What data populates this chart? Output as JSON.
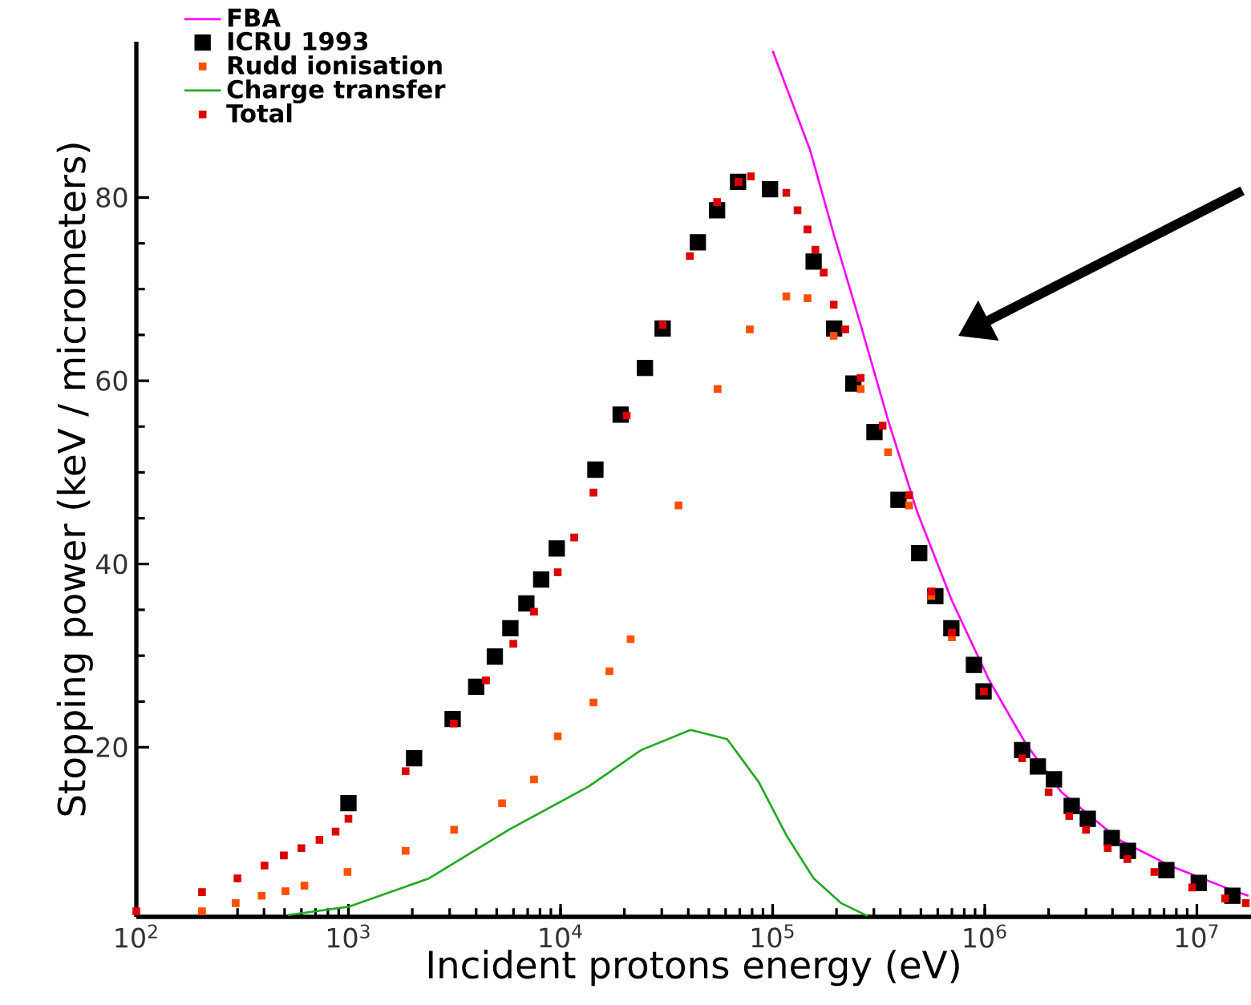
{
  "chart_data": {
    "type": "line",
    "xlabel": "Incident protons energy (eV)",
    "ylabel": "Stopping power (keV / micrometers)",
    "log": "x",
    "xlim": [
      100,
      18000000
    ],
    "ylim": [
      1.5,
      97
    ],
    "xticks": [
      {
        "value": 100,
        "label": "10$^{2}$"
      },
      {
        "value": 1000,
        "label": "10$^{3}$"
      },
      {
        "value": 10000,
        "label": "10$^{4}$"
      },
      {
        "value": 100000,
        "label": "10$^{5}$"
      },
      {
        "value": 1000000,
        "label": "10$^{6}$"
      },
      {
        "value": 10000000,
        "label": "10$^{7}$"
      }
    ],
    "yticks": [
      20,
      40,
      60,
      80
    ],
    "grid": false,
    "legend": "top left",
    "series": [
      {
        "name": "FBA",
        "type": "line",
        "color": "#ff00ff",
        "marker": "none",
        "x": [
          100000,
          150000,
          194000,
          260000,
          350000,
          480000,
          700000,
          1050000,
          1570000,
          2300000,
          4300000,
          7600000,
          13600000,
          17500000
        ],
        "values": [
          96,
          85.2,
          76,
          66.1,
          55.7,
          45.7,
          36,
          27.3,
          20.3,
          15.1,
          9.9,
          7,
          4.7,
          3.8
        ]
      },
      {
        "name": "ICRU 1993",
        "type": "scatter",
        "color": "#000000",
        "marker": "square",
        "x": [
          1000,
          2040,
          3100,
          4000,
          4900,
          5800,
          6900,
          8100,
          9600,
          14600,
          19200,
          25000,
          30300,
          44400,
          54700,
          68700,
          97200,
          156000,
          195000,
          240000,
          302000,
          392000,
          491000,
          585000,
          696000,
          889000,
          987000,
          1500000,
          1780000,
          2120000,
          2570000,
          3060000,
          3970000,
          4730000,
          7180000,
          10200000,
          14700000
        ],
        "values": [
          13.9,
          18.8,
          23.1,
          26.6,
          29.9,
          33,
          35.7,
          38.3,
          41.7,
          50.3,
          56.3,
          61.4,
          65.7,
          75.1,
          78.6,
          81.7,
          80.9,
          73,
          65.7,
          59.7,
          54.4,
          47,
          41.2,
          36.5,
          33,
          29,
          26.1,
          19.7,
          17.9,
          16.5,
          13.6,
          12.2,
          10.1,
          8.7,
          6.6,
          5.2,
          3.8
        ]
      },
      {
        "name": "Rudd ionisation",
        "type": "scatter",
        "color": "#ff5000",
        "marker": "square",
        "x": [
          204,
          294,
          390,
          505,
          620,
          990,
          1860,
          3150,
          5300,
          7500,
          9700,
          14300,
          17000,
          21400,
          36000,
          55000,
          78000,
          116000,
          146000,
          194000,
          260000,
          350000,
          440000,
          560000,
          700000
        ],
        "values": [
          2.1,
          3,
          3.8,
          4.3,
          4.9,
          6.4,
          8.7,
          11,
          13.9,
          16.5,
          21.2,
          24.9,
          28.3,
          31.8,
          46.4,
          59.1,
          65.6,
          69.2,
          69,
          64.9,
          59.1,
          52.2,
          46.4,
          36.5,
          32
        ]
      },
      {
        "name": "Charge transfer",
        "type": "line",
        "color": "#22aa22",
        "marker": "none",
        "x": [
          520,
          1000,
          2400,
          5700,
          13500,
          24000,
          41000,
          61000,
          86000,
          116000,
          156000,
          210000,
          280000
        ],
        "values": [
          1.7,
          2.6,
          5.7,
          11,
          15.7,
          19.7,
          21.9,
          20.9,
          16.2,
          10.4,
          5.7,
          3,
          1.6
        ]
      },
      {
        "name": "Total",
        "type": "scatter",
        "color": "#dd0000",
        "marker": "square",
        "x": [
          100,
          204,
          300,
          402,
          496,
          600,
          730,
          870,
          1000,
          1860,
          3140,
          4450,
          5990,
          7500,
          9700,
          11600,
          14300,
          20500,
          30300,
          40700,
          54700,
          69000,
          79000,
          116000,
          131000,
          146000,
          159000,
          174000,
          194000,
          220000,
          260000,
          330000,
          440000,
          560000,
          700000,
          990000,
          1500000,
          2000000,
          2500000,
          3000000,
          3800000,
          4700000,
          6300000,
          9500000,
          13600000,
          17000000
        ],
        "values": [
          2.1,
          4.2,
          5.7,
          7.1,
          8.2,
          9,
          9.9,
          10.8,
          12.2,
          17.4,
          22.6,
          27.3,
          31.3,
          34.8,
          39.1,
          42.9,
          47.8,
          56.2,
          66.1,
          73.6,
          79.5,
          81.7,
          82.3,
          80.5,
          78.6,
          76.5,
          74.3,
          71.8,
          68.3,
          65.6,
          60.3,
          55.1,
          47.5,
          37,
          32.5,
          26.1,
          18.8,
          15.1,
          12.5,
          11,
          9,
          7.8,
          6.4,
          4.7,
          3.5,
          3
        ]
      }
    ]
  }
}
